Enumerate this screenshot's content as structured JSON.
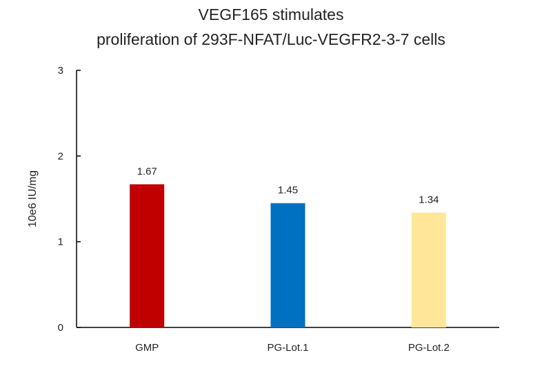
{
  "chart_data": {
    "type": "bar",
    "title_line1": "VEGF165 stimulates",
    "title_line2": "proliferation of 293F-NFAT/Luc-VEGFR2-3-7 cells",
    "xlabel": "",
    "ylabel": "10e6 IU/mg",
    "categories": [
      "GMP",
      "PG-Lot.1",
      "PG-Lot.2"
    ],
    "values": [
      1.67,
      1.45,
      1.34
    ],
    "data_labels": [
      "1.67",
      "1.45",
      "1.34"
    ],
    "colors": [
      "#c00000",
      "#0070c0",
      "#ffe699"
    ],
    "yticks": [
      0,
      1,
      2,
      3
    ],
    "ylim": [
      0,
      3
    ],
    "grid": false,
    "legend": "none"
  }
}
